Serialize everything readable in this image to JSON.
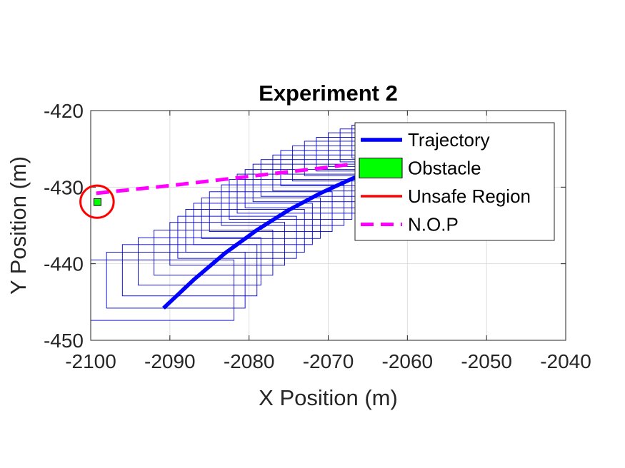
{
  "chart_data": {
    "type": "line",
    "title": "Experiment 2",
    "xlabel": "X Position (m)",
    "ylabel": "Y Position (m)",
    "xlim": [
      -2100,
      -2040
    ],
    "ylim": [
      -450,
      -420
    ],
    "xticks": [
      -2100,
      -2090,
      -2080,
      -2070,
      -2060,
      -2050,
      -2040
    ],
    "yticks": [
      -450,
      -440,
      -430,
      -420
    ],
    "xtick_labels": [
      "-2100",
      "-2090",
      "-2080",
      "-2070",
      "-2060",
      "-2050",
      "-2040"
    ],
    "ytick_labels": [
      "-450",
      "-440",
      "-430",
      "-420"
    ],
    "grid": true,
    "legend_position": "top-right",
    "legend": [
      {
        "label": "Trajectory",
        "style": "line",
        "color": "#0000ff"
      },
      {
        "label": "Obstacle",
        "style": "patch",
        "color": "#00ff00"
      },
      {
        "label": "Unsafe Region",
        "style": "line",
        "color": "#ff0000"
      },
      {
        "label": "N.O.P",
        "style": "dashed",
        "color": "#ff00ff"
      }
    ],
    "series": [
      {
        "name": "Trajectory",
        "color": "#0000ff",
        "points": [
          [
            -2090.8,
            -445.8
          ],
          [
            -2087,
            -442.1
          ],
          [
            -2083,
            -438.6
          ],
          [
            -2079,
            -435.6
          ],
          [
            -2075,
            -433.0
          ],
          [
            -2071,
            -430.8
          ],
          [
            -2067,
            -428.9
          ],
          [
            -2063,
            -427.2
          ]
        ]
      },
      {
        "name": "N.O.P",
        "color": "#ff00ff",
        "points": [
          [
            -2099.3,
            -430.8
          ],
          [
            -2090,
            -429.8
          ],
          [
            -2080,
            -428.6
          ],
          [
            -2070,
            -427.4
          ],
          [
            -2062,
            -426.3
          ]
        ]
      }
    ],
    "obstacle": {
      "x": -2099.6,
      "y": -432.4,
      "width": 0.9,
      "height": 0.9,
      "color": "#00ff00"
    },
    "unsafe_region": {
      "cx": -2099.2,
      "cy": -431.9,
      "r": 2.1,
      "color": "#ff0000"
    },
    "reachable_sets": {
      "color": "#0000cc",
      "boxes": [
        [
          -2100,
          -447.4,
          -2081.9,
          -439.5
        ],
        [
          -2098,
          -445.8,
          -2080.5,
          -438.5
        ],
        [
          -2096,
          -444.2,
          -2079,
          -437.5
        ],
        [
          -2094,
          -442.8,
          -2078.5,
          -436.6
        ],
        [
          -2092,
          -441.5,
          -2077,
          -435.6
        ],
        [
          -2090,
          -440.2,
          -2075.5,
          -434.6
        ],
        [
          -2089,
          -439.3,
          -2074,
          -433.8
        ],
        [
          -2088,
          -438.5,
          -2073,
          -432.9
        ],
        [
          -2087,
          -437.5,
          -2072,
          -432.1
        ],
        [
          -2086,
          -436.7,
          -2071,
          -431.4
        ],
        [
          -2085,
          -435.8,
          -2069.5,
          -430.6
        ],
        [
          -2083.5,
          -435.0,
          -2068,
          -429.7
        ],
        [
          -2082.5,
          -434.2,
          -2067,
          -429.0
        ],
        [
          -2081.5,
          -433.4,
          -2066,
          -428.3
        ],
        [
          -2080.5,
          -432.7,
          -2065,
          -427.7
        ],
        [
          -2079.5,
          -431.9,
          -2064,
          -427.0
        ],
        [
          -2078.5,
          -431.2,
          -2063,
          -426.4
        ],
        [
          -2077,
          -430.5,
          -2062,
          -425.8
        ],
        [
          -2076,
          -429.8,
          -2061,
          -425.2
        ],
        [
          -2074.5,
          -429.2,
          -2060,
          -424.6
        ],
        [
          -2073,
          -428.5,
          -2059,
          -424.0
        ],
        [
          -2071.5,
          -427.9,
          -2058,
          -423.5
        ],
        [
          -2070,
          -427.3,
          -2057,
          -422.9
        ],
        [
          -2068.5,
          -426.7,
          -2056.5,
          -422.4
        ],
        [
          -2067,
          -426.2,
          -2056,
          -421.9
        ]
      ]
    }
  }
}
